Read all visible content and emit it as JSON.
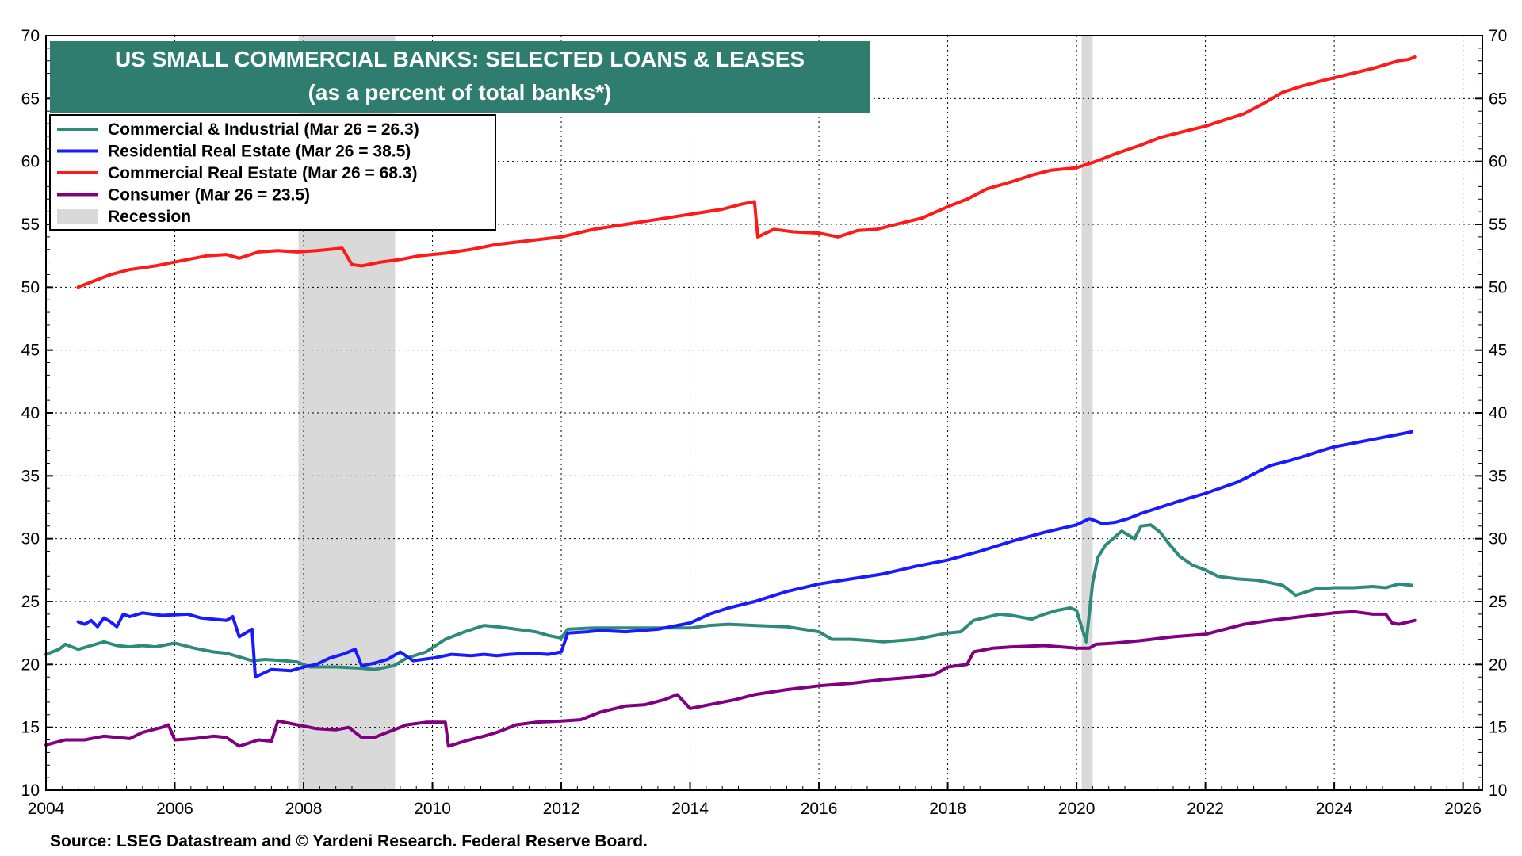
{
  "chart_data": {
    "type": "line",
    "title": "US SMALL COMMERCIAL BANKS: SELECTED LOANS & LEASES",
    "subtitle": "(as a percent of total banks*)",
    "source": "Source: LSEG Datastream and © Yardeni Research. Federal Reserve Board.",
    "xlim": [
      2004,
      2026.3
    ],
    "ylim": [
      10,
      70
    ],
    "x_ticks": [
      2004,
      2006,
      2008,
      2010,
      2012,
      2014,
      2016,
      2018,
      2020,
      2022,
      2024,
      2026
    ],
    "y_ticks": [
      10,
      15,
      20,
      25,
      30,
      35,
      40,
      45,
      50,
      55,
      60,
      65,
      70
    ],
    "grid": true,
    "legend_position": "top-left",
    "recessions": [
      {
        "name": "Recession",
        "start": 2007.92,
        "end": 2009.42
      },
      {
        "name": "Recession",
        "start": 2020.08,
        "end": 2020.25
      }
    ],
    "series": [
      {
        "name": "Commercial & Industrial (Mar 26 = 26.3)",
        "color": "#2e8b7a",
        "x": [
          2004.0,
          2004.2,
          2004.3,
          2004.5,
          2004.7,
          2004.9,
          2005.1,
          2005.3,
          2005.5,
          2005.7,
          2006.0,
          2006.3,
          2006.6,
          2006.8,
          2007.0,
          2007.2,
          2007.4,
          2007.7,
          2007.9,
          2008.1,
          2008.5,
          2008.9,
          2009.1,
          2009.4,
          2009.6,
          2009.9,
          2010.2,
          2010.5,
          2010.8,
          2011.0,
          2011.3,
          2011.6,
          2011.8,
          2012.0,
          2012.1,
          2012.5,
          2013.0,
          2013.5,
          2014.0,
          2014.3,
          2014.6,
          2015.0,
          2015.5,
          2016.0,
          2016.2,
          2016.5,
          2016.8,
          2017.0,
          2017.5,
          2018.0,
          2018.2,
          2018.4,
          2018.8,
          2019.0,
          2019.3,
          2019.5,
          2019.7,
          2019.9,
          2020.0,
          2020.15,
          2020.25,
          2020.33,
          2020.45,
          2020.7,
          2020.9,
          2021.0,
          2021.15,
          2021.3,
          2021.45,
          2021.6,
          2021.8,
          2022.0,
          2022.2,
          2022.5,
          2022.8,
          2023.0,
          2023.2,
          2023.4,
          2023.7,
          2024.0,
          2024.3,
          2024.6,
          2024.8,
          2025.0,
          2025.2
        ],
        "values": [
          20.8,
          21.2,
          21.6,
          21.2,
          21.5,
          21.8,
          21.5,
          21.4,
          21.5,
          21.4,
          21.7,
          21.3,
          21.0,
          20.9,
          20.6,
          20.3,
          20.4,
          20.3,
          20.2,
          19.8,
          19.8,
          19.7,
          19.6,
          19.9,
          20.5,
          21.0,
          22.0,
          22.6,
          23.1,
          23.0,
          22.8,
          22.6,
          22.3,
          22.1,
          22.8,
          22.9,
          22.9,
          22.9,
          22.9,
          23.1,
          23.2,
          23.1,
          23.0,
          22.6,
          22.0,
          22.0,
          21.9,
          21.8,
          22.0,
          22.5,
          22.6,
          23.5,
          24.0,
          23.9,
          23.6,
          24.0,
          24.3,
          24.5,
          24.3,
          21.8,
          26.5,
          28.5,
          29.5,
          30.6,
          30.0,
          31.0,
          31.1,
          30.5,
          29.5,
          28.6,
          27.9,
          27.5,
          27.0,
          26.8,
          26.7,
          26.5,
          26.3,
          25.5,
          26.0,
          26.1,
          26.1,
          26.2,
          26.1,
          26.4,
          26.3
        ]
      },
      {
        "name": "Residential Real Estate (Mar 26 = 38.5)",
        "color": "#1a1aff",
        "x": [
          2004.5,
          2004.6,
          2004.7,
          2004.8,
          2004.9,
          2005.0,
          2005.1,
          2005.2,
          2005.3,
          2005.5,
          2005.8,
          2006.2,
          2006.4,
          2006.6,
          2006.8,
          2006.9,
          2007.0,
          2007.1,
          2007.2,
          2007.25,
          2007.5,
          2007.8,
          2008.0,
          2008.2,
          2008.4,
          2008.6,
          2008.8,
          2008.9,
          2009.1,
          2009.3,
          2009.5,
          2009.7,
          2010.0,
          2010.3,
          2010.6,
          2010.8,
          2011.0,
          2011.2,
          2011.5,
          2011.8,
          2012.0,
          2012.1,
          2012.4,
          2012.6,
          2013.0,
          2013.5,
          2014.0,
          2014.3,
          2014.6,
          2015.0,
          2015.5,
          2016.0,
          2016.5,
          2017.0,
          2017.5,
          2018.0,
          2018.5,
          2019.0,
          2019.5,
          2020.0,
          2020.2,
          2020.4,
          2020.6,
          2020.8,
          2021.0,
          2021.3,
          2021.6,
          2022.0,
          2022.5,
          2023.0,
          2023.3,
          2023.5,
          2023.8,
          2024.0,
          2024.3,
          2024.6,
          2024.9,
          2025.1,
          2025.2
        ],
        "values": [
          23.4,
          23.2,
          23.5,
          23.0,
          23.7,
          23.4,
          23.0,
          24.0,
          23.8,
          24.1,
          23.9,
          24.0,
          23.7,
          23.6,
          23.5,
          23.8,
          22.2,
          22.5,
          22.8,
          19.0,
          19.6,
          19.5,
          19.8,
          20.0,
          20.5,
          20.8,
          21.2,
          19.9,
          20.1,
          20.4,
          21.0,
          20.3,
          20.5,
          20.8,
          20.7,
          20.8,
          20.7,
          20.8,
          20.9,
          20.8,
          21.0,
          22.5,
          22.6,
          22.7,
          22.6,
          22.8,
          23.3,
          24.0,
          24.5,
          25.0,
          25.8,
          26.4,
          26.8,
          27.2,
          27.8,
          28.3,
          29.0,
          29.8,
          30.5,
          31.1,
          31.6,
          31.2,
          31.3,
          31.6,
          32.0,
          32.5,
          33.0,
          33.6,
          34.5,
          35.8,
          36.2,
          36.5,
          37.0,
          37.3,
          37.6,
          37.9,
          38.2,
          38.4,
          38.5
        ]
      },
      {
        "name": "Commercial Real Estate (Mar 26 = 68.3)",
        "color": "#ff1a1a",
        "x": [
          2004.5,
          2004.8,
          2005.0,
          2005.3,
          2005.7,
          2006.0,
          2006.5,
          2006.8,
          2007.0,
          2007.3,
          2007.6,
          2007.9,
          2008.2,
          2008.6,
          2008.75,
          2008.9,
          2009.2,
          2009.5,
          2009.8,
          2010.2,
          2010.6,
          2011.0,
          2011.5,
          2012.0,
          2012.5,
          2013.0,
          2013.5,
          2014.0,
          2014.5,
          2014.8,
          2015.0,
          2015.05,
          2015.3,
          2015.6,
          2016.0,
          2016.3,
          2016.6,
          2016.9,
          2017.2,
          2017.6,
          2018.0,
          2018.3,
          2018.6,
          2019.0,
          2019.3,
          2019.6,
          2020.0,
          2020.3,
          2020.6,
          2021.0,
          2021.3,
          2021.6,
          2022.0,
          2022.3,
          2022.6,
          2022.9,
          2023.2,
          2023.5,
          2023.8,
          2024.2,
          2024.6,
          2025.0,
          2025.15,
          2025.25
        ],
        "values": [
          50.0,
          50.6,
          51.0,
          51.4,
          51.7,
          52.0,
          52.5,
          52.6,
          52.3,
          52.8,
          52.9,
          52.8,
          52.9,
          53.1,
          51.8,
          51.7,
          52.0,
          52.2,
          52.5,
          52.7,
          53.0,
          53.4,
          53.7,
          54.0,
          54.6,
          55.0,
          55.4,
          55.8,
          56.2,
          56.6,
          56.8,
          54.0,
          54.6,
          54.4,
          54.3,
          54.0,
          54.5,
          54.6,
          55.0,
          55.5,
          56.4,
          57.0,
          57.8,
          58.4,
          58.9,
          59.3,
          59.5,
          60.0,
          60.6,
          61.3,
          61.9,
          62.3,
          62.8,
          63.3,
          63.8,
          64.6,
          65.5,
          66.0,
          66.4,
          66.9,
          67.4,
          68.0,
          68.1,
          68.3
        ]
      },
      {
        "name": "Consumer (Mar 26 = 23.5)",
        "color": "#800080",
        "x": [
          2004.0,
          2004.3,
          2004.6,
          2004.9,
          2005.1,
          2005.3,
          2005.5,
          2005.8,
          2005.9,
          2006.0,
          2006.3,
          2006.6,
          2006.8,
          2007.0,
          2007.3,
          2007.5,
          2007.6,
          2007.9,
          2008.2,
          2008.5,
          2008.7,
          2008.9,
          2009.1,
          2009.3,
          2009.6,
          2009.9,
          2010.2,
          2010.25,
          2010.5,
          2010.8,
          2011.0,
          2011.3,
          2011.6,
          2012.0,
          2012.3,
          2012.6,
          2013.0,
          2013.3,
          2013.6,
          2013.8,
          2014.0,
          2014.3,
          2014.7,
          2015.0,
          2015.5,
          2016.0,
          2016.5,
          2017.0,
          2017.5,
          2017.8,
          2018.0,
          2018.3,
          2018.4,
          2018.7,
          2019.0,
          2019.5,
          2020.0,
          2020.2,
          2020.3,
          2020.6,
          2021.0,
          2021.5,
          2022.0,
          2022.3,
          2022.6,
          2023.0,
          2023.5,
          2024.0,
          2024.3,
          2024.6,
          2024.8,
          2024.9,
          2025.0,
          2025.25
        ],
        "values": [
          13.6,
          14.0,
          14.0,
          14.3,
          14.2,
          14.1,
          14.6,
          15.0,
          15.2,
          14.0,
          14.1,
          14.3,
          14.2,
          13.5,
          14.0,
          13.9,
          15.5,
          15.2,
          14.9,
          14.8,
          15.0,
          14.2,
          14.2,
          14.6,
          15.2,
          15.4,
          15.4,
          13.5,
          13.9,
          14.3,
          14.6,
          15.2,
          15.4,
          15.5,
          15.6,
          16.2,
          16.7,
          16.8,
          17.2,
          17.6,
          16.5,
          16.8,
          17.2,
          17.6,
          18.0,
          18.3,
          18.5,
          18.8,
          19.0,
          19.2,
          19.8,
          20.0,
          21.0,
          21.3,
          21.4,
          21.5,
          21.3,
          21.3,
          21.6,
          21.7,
          21.9,
          22.2,
          22.4,
          22.8,
          23.2,
          23.5,
          23.8,
          24.1,
          24.2,
          24.0,
          24.0,
          23.3,
          23.2,
          23.5
        ]
      }
    ],
    "legend": [
      {
        "label": "Commercial & Industrial (Mar 26 = 26.3)",
        "color": "#2e8b7a",
        "kind": "line"
      },
      {
        "label": "Residential Real Estate (Mar 26 = 38.5)",
        "color": "#1a1aff",
        "kind": "line"
      },
      {
        "label": "Commercial Real Estate (Mar 26 = 68.3)",
        "color": "#ff1a1a",
        "kind": "line"
      },
      {
        "label": "Consumer (Mar 26 = 23.5)",
        "color": "#800080",
        "kind": "line"
      },
      {
        "label": "Recession",
        "color": "#d9d9d9",
        "kind": "box"
      }
    ],
    "colors": {
      "title_bg": "#2e7d6e",
      "recession": "#d9d9d9",
      "grid": "#000000"
    }
  }
}
